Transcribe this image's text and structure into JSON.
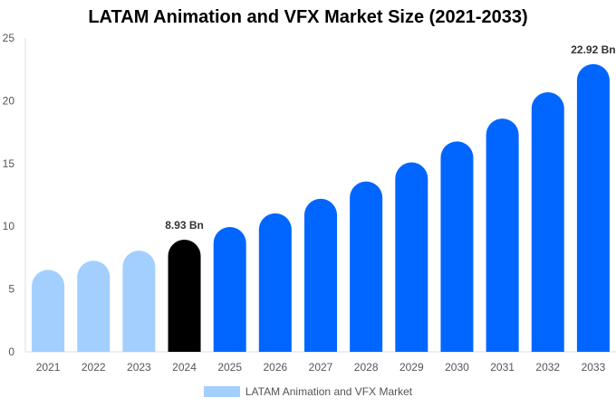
{
  "chart_data": {
    "type": "bar",
    "title": "LATAM Animation and VFX Market Size (2021-2033)",
    "categories": [
      "2021",
      "2022",
      "2023",
      "2024",
      "2025",
      "2026",
      "2027",
      "2028",
      "2029",
      "2030",
      "2031",
      "2032",
      "2033"
    ],
    "series": [
      {
        "name": "LATAM Animation and VFX Market",
        "values": [
          6.53,
          7.26,
          8.06,
          8.93,
          9.94,
          11.03,
          12.19,
          13.57,
          15.09,
          16.76,
          18.58,
          20.68,
          22.92
        ]
      }
    ],
    "data_labels": {
      "2024": "8.93 Bn",
      "2033": "22.92 Bn"
    },
    "ylim": [
      0,
      25
    ],
    "yticks": [
      0,
      5,
      10,
      15,
      20,
      25
    ],
    "xlabel": "",
    "ylabel": "",
    "grid": false,
    "legend_position": "bottom",
    "colors": {
      "historical": "#a3cfff",
      "base_year": "#000000",
      "forecast": "#0066ff",
      "legend": "#a3cfff"
    }
  }
}
